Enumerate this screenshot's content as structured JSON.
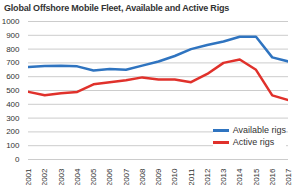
{
  "chart_data": {
    "type": "line",
    "title": "Global Offshore Mobile Fleet, Available and Active Rigs",
    "x": [
      2001,
      2002,
      2003,
      2004,
      2005,
      2006,
      2007,
      2008,
      2009,
      2010,
      2011,
      2012,
      2013,
      2014,
      2015,
      2016,
      2017
    ],
    "series": [
      {
        "name": "Available rigs",
        "color": "#2f74c0",
        "values": [
          670,
          678,
          680,
          675,
          645,
          655,
          650,
          680,
          710,
          750,
          800,
          830,
          855,
          890,
          890,
          740,
          710
        ]
      },
      {
        "name": "Active rigs",
        "color": "#e0312b",
        "values": [
          490,
          465,
          480,
          490,
          545,
          560,
          575,
          595,
          580,
          580,
          560,
          620,
          700,
          725,
          650,
          465,
          430
        ]
      }
    ],
    "xlim": [
      2001,
      2017
    ],
    "xticks": [
      2001,
      2002,
      2003,
      2004,
      2005,
      2006,
      2007,
      2008,
      2009,
      2010,
      2011,
      2012,
      2013,
      2014,
      2015,
      2016,
      2017
    ],
    "ylim": [
      0,
      1000
    ],
    "yticks": [
      0,
      100,
      200,
      300,
      400,
      500,
      600,
      700,
      800,
      900,
      1000
    ],
    "grid": true,
    "legend": "lower-right"
  }
}
